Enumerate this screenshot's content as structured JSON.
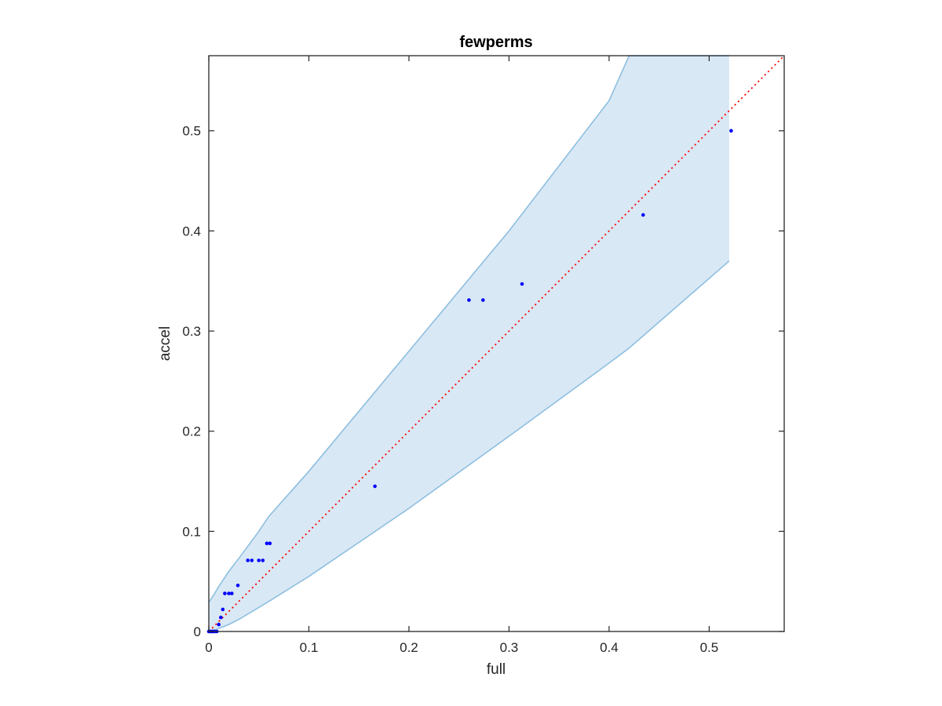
{
  "chart_data": {
    "type": "scatter",
    "title": "fewperms",
    "xlabel": "full",
    "ylabel": "accel",
    "xlim": [
      0,
      0.575
    ],
    "ylim": [
      0,
      0.575
    ],
    "xticks": [
      0,
      0.1,
      0.2,
      0.3,
      0.4,
      0.5
    ],
    "yticks": [
      0,
      0.1,
      0.2,
      0.3,
      0.4,
      0.5
    ],
    "xtick_labels": [
      "0",
      "0.1",
      "0.2",
      "0.3",
      "0.4",
      "0.5"
    ],
    "ytick_labels": [
      "0",
      "0.1",
      "0.2",
      "0.3",
      "0.4",
      "0.5"
    ],
    "grid": false,
    "colors": {
      "points": "#0000ff",
      "band_fill": "#d9e8f5",
      "band_edge": "#8dbfe0",
      "diagonal": "#ff0000",
      "axes": "#262626"
    },
    "band": {
      "x": [
        0,
        0.004,
        0.01,
        0.02,
        0.03,
        0.05,
        0.06,
        0.1,
        0.2,
        0.3,
        0.4,
        0.42,
        0.52
      ],
      "upper": [
        0.029,
        0.035,
        0.045,
        0.06,
        0.073,
        0.1,
        0.115,
        0.16,
        0.28,
        0.4,
        0.53,
        0.575,
        0.575
      ],
      "lower": [
        0,
        0.001,
        0.003,
        0.007,
        0.012,
        0.024,
        0.03,
        0.055,
        0.123,
        0.195,
        0.268,
        0.283,
        0.37
      ]
    },
    "diagonal": {
      "style": "dotted",
      "from": [
        0,
        0
      ],
      "to": [
        0.575,
        0.575
      ]
    },
    "series": [
      {
        "points": [
          [
            0,
            0
          ],
          [
            0.001,
            0
          ],
          [
            0.002,
            0
          ],
          [
            0.003,
            0
          ],
          [
            0.004,
            0
          ],
          [
            0.005,
            0
          ],
          [
            0.006,
            0
          ],
          [
            0.008,
            0
          ],
          [
            0.01,
            0.007
          ],
          [
            0.012,
            0.014
          ],
          [
            0.014,
            0.022
          ],
          [
            0.016,
            0.038
          ],
          [
            0.02,
            0.038
          ],
          [
            0.023,
            0.038
          ],
          [
            0.029,
            0.046
          ],
          [
            0.039,
            0.071
          ],
          [
            0.043,
            0.071
          ],
          [
            0.05,
            0.071
          ],
          [
            0.054,
            0.071
          ],
          [
            0.058,
            0.088
          ],
          [
            0.061,
            0.088
          ],
          [
            0.166,
            0.145
          ],
          [
            0.26,
            0.331
          ],
          [
            0.274,
            0.331
          ],
          [
            0.313,
            0.347
          ],
          [
            0.434,
            0.416
          ],
          [
            0.522,
            0.5
          ]
        ]
      }
    ]
  }
}
